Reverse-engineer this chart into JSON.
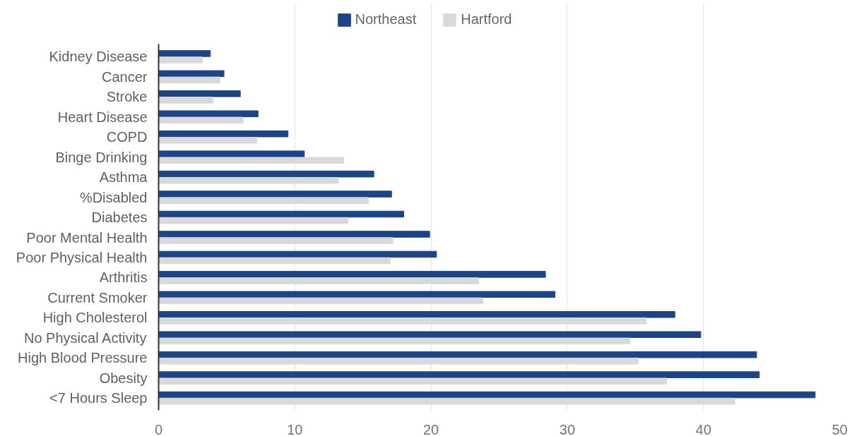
{
  "chart_data": {
    "type": "bar",
    "orientation": "horizontal",
    "categories": [
      "Kidney Disease",
      "Cancer",
      "Stroke",
      "Heart Disease",
      "COPD",
      "Binge Drinking",
      "Asthma",
      "%Disabled",
      "Diabetes",
      "Poor Mental Health",
      "Poor Physical Health",
      "Arthritis",
      "Current Smoker",
      "High Cholesterol",
      "No Physical Activity",
      "High Blood Pressure",
      "Obesity",
      "<7 Hours Sleep"
    ],
    "series": [
      {
        "name": "Northeast",
        "color": "#1c4587",
        "values": [
          3.8,
          4.8,
          6.0,
          7.3,
          9.5,
          10.7,
          15.8,
          17.1,
          18.0,
          19.9,
          20.4,
          28.4,
          29.1,
          37.9,
          39.8,
          43.9,
          44.1,
          48.2
        ]
      },
      {
        "name": "Hartford",
        "color": "#d9d9d9",
        "values": [
          3.2,
          4.5,
          4.0,
          6.2,
          7.2,
          13.6,
          13.2,
          15.4,
          13.9,
          17.2,
          17.0,
          23.5,
          23.8,
          35.8,
          34.6,
          35.2,
          37.3,
          42.3
        ]
      }
    ],
    "xlim": [
      0,
      50
    ],
    "xticks": [
      0,
      10,
      20,
      30,
      40,
      50
    ],
    "grid": "x",
    "legend": "top"
  }
}
